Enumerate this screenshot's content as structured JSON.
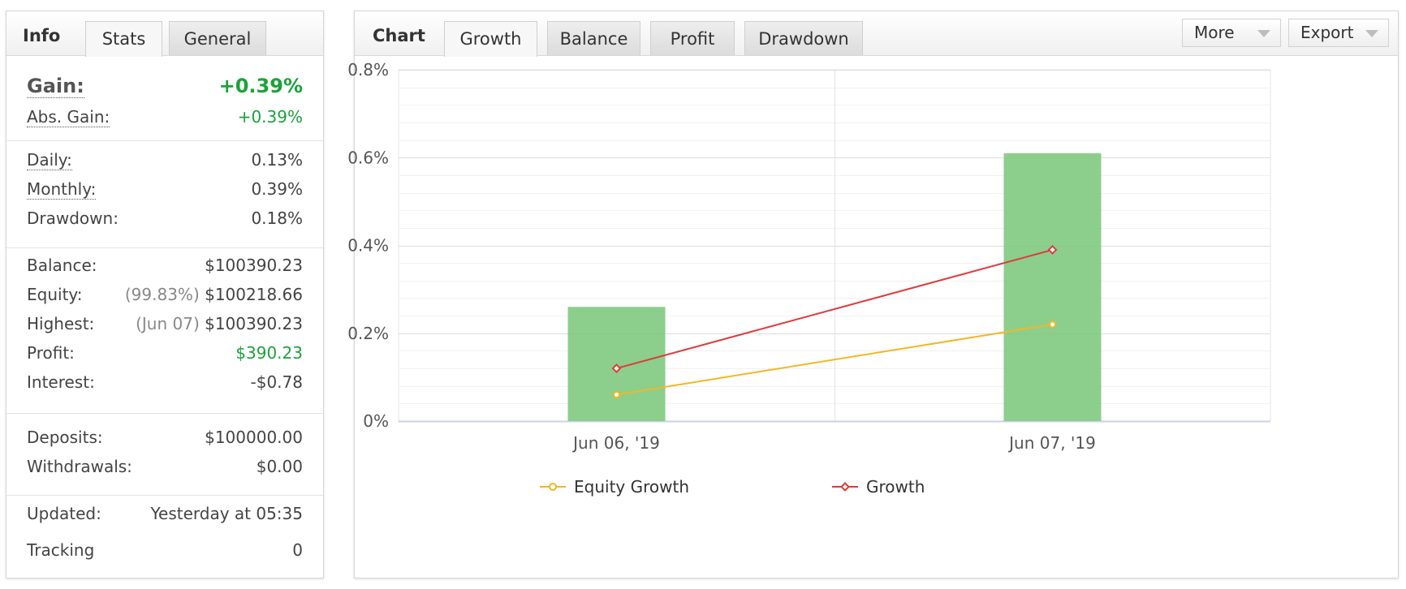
{
  "info_panel": {
    "title": "Info",
    "tabs": [
      {
        "label": "Stats"
      },
      {
        "label": "General"
      }
    ],
    "gain": {
      "label": "Gain:",
      "value": "+0.39%"
    },
    "abs_gain": {
      "label": "Abs. Gain:",
      "value": "+0.39%"
    },
    "daily": {
      "label": "Daily:",
      "value": "0.13%"
    },
    "monthly": {
      "label": "Monthly:",
      "value": "0.39%"
    },
    "drawdown": {
      "label": "Drawdown:",
      "value": "0.18%"
    },
    "balance": {
      "label": "Balance:",
      "value": "$100390.23"
    },
    "equity": {
      "label": "Equity:",
      "note": "(99.83%)",
      "value": "$100218.66"
    },
    "highest": {
      "label": "Highest:",
      "note": "(Jun 07)",
      "value": "$100390.23"
    },
    "profit": {
      "label": "Profit:",
      "value": "$390.23"
    },
    "interest": {
      "label": "Interest:",
      "value": "-$0.78"
    },
    "deposits": {
      "label": "Deposits:",
      "value": "$100000.00"
    },
    "withdrawals": {
      "label": "Withdrawals:",
      "value": "$0.00"
    },
    "updated": {
      "label": "Updated:",
      "value": "Yesterday at 05:35"
    },
    "tracking": {
      "label": "Tracking",
      "value": "0"
    }
  },
  "chart_panel": {
    "title": "Chart",
    "tabs": [
      {
        "label": "Growth"
      },
      {
        "label": "Balance"
      },
      {
        "label": "Profit"
      },
      {
        "label": "Drawdown"
      }
    ],
    "more_label": "More",
    "export_label": "Export"
  },
  "colors": {
    "bar": "#7fc97f",
    "equity_growth": "#f2b724",
    "growth": "#e03a3a",
    "positive": "#1aa33a"
  },
  "chart_data": {
    "type": "bar",
    "categories": [
      "Jun 06, '19",
      "Jun 07, '19"
    ],
    "yticks": [
      "0%",
      "0.2%",
      "0.4%",
      "0.6%",
      "0.8%"
    ],
    "ylim": [
      0,
      0.8
    ],
    "grid": true,
    "legend_position": "bottom",
    "series": [
      {
        "type": "bar",
        "values": [
          0.26,
          0.61
        ]
      },
      {
        "name": "Equity Growth",
        "type": "line",
        "values": [
          0.06,
          0.22
        ]
      },
      {
        "name": "Growth",
        "type": "line",
        "values": [
          0.12,
          0.39
        ]
      }
    ]
  }
}
